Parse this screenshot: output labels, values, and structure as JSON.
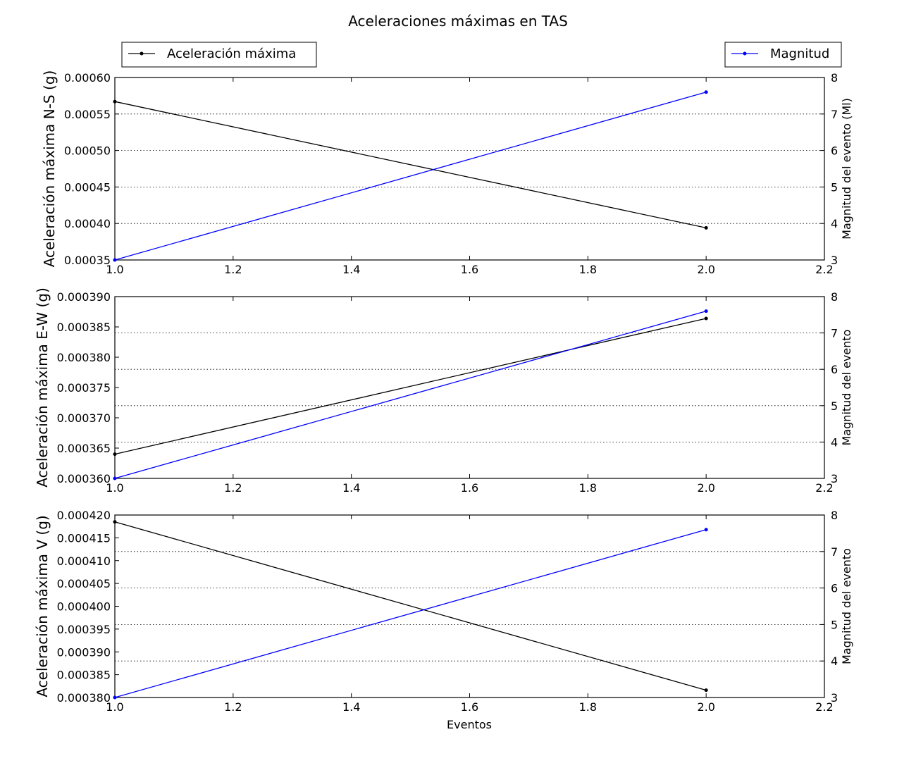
{
  "chart_data": {
    "type": "line",
    "title": "Aceleraciones máximas en TAS",
    "legend": {
      "left": {
        "label": "Aceleración máxima",
        "color": "#000000",
        "placement": "top-left"
      },
      "right": {
        "label": "Magnitud",
        "color": "#0000ff",
        "placement": "top-right"
      }
    },
    "xlabel": "Eventos",
    "xlim": [
      1.0,
      2.2
    ],
    "xticks": [
      "1.0",
      "1.2",
      "1.4",
      "1.6",
      "1.8",
      "2.0",
      "2.2"
    ],
    "panels": [
      {
        "ylabel": "Aceleración máxima N-S (g)",
        "ylim": [
          0.00035,
          0.0006
        ],
        "yticks": [
          "0.00035",
          "0.00040",
          "0.00045",
          "0.00050",
          "0.00055",
          "0.00060"
        ],
        "y2label": "Magnitud del evento (Ml)",
        "y2lim": [
          3,
          8
        ],
        "y2ticks": [
          "3",
          "4",
          "5",
          "6",
          "7",
          "8"
        ],
        "series": [
          {
            "name": "Aceleración máxima",
            "axis": "left",
            "color": "#000000",
            "x": [
              1,
              2
            ],
            "y": [
              0.000567,
              0.000394
            ]
          },
          {
            "name": "Magnitud",
            "axis": "right",
            "color": "#0000ff",
            "x": [
              1,
              2
            ],
            "y": [
              3.0,
              7.6
            ]
          }
        ]
      },
      {
        "ylabel": "Aceleración máxima E-W (g)",
        "ylim": [
          0.00036,
          0.00039
        ],
        "yticks": [
          "0.000360",
          "0.000365",
          "0.000370",
          "0.000375",
          "0.000380",
          "0.000385",
          "0.000390"
        ],
        "y2label": "Magnitud del evento",
        "y2lim": [
          3,
          8
        ],
        "y2ticks": [
          "3",
          "4",
          "5",
          "6",
          "7",
          "8"
        ],
        "series": [
          {
            "name": "Aceleración máxima",
            "axis": "left",
            "color": "#000000",
            "x": [
              1,
              2
            ],
            "y": [
              0.000364,
              0.0003864
            ]
          },
          {
            "name": "Magnitud",
            "axis": "right",
            "color": "#0000ff",
            "x": [
              1,
              2
            ],
            "y": [
              3.0,
              7.6
            ]
          }
        ]
      },
      {
        "ylabel": "Aceleración máxima V (g)",
        "ylim": [
          0.00038,
          0.00042
        ],
        "yticks": [
          "0.000380",
          "0.000385",
          "0.000390",
          "0.000395",
          "0.000400",
          "0.000405",
          "0.000410",
          "0.000415",
          "0.000420"
        ],
        "y2label": "Magnitud del evento",
        "y2lim": [
          3,
          8
        ],
        "y2ticks": [
          "3",
          "4",
          "5",
          "6",
          "7",
          "8"
        ],
        "series": [
          {
            "name": "Aceleración máxima",
            "axis": "left",
            "color": "#000000",
            "x": [
              1,
              2
            ],
            "y": [
              0.0004185,
              0.0003816
            ]
          },
          {
            "name": "Magnitud",
            "axis": "right",
            "color": "#0000ff",
            "x": [
              1,
              2
            ],
            "y": [
              3.0,
              7.6
            ]
          }
        ]
      }
    ],
    "grid": "right-axis horizontal dotted"
  }
}
